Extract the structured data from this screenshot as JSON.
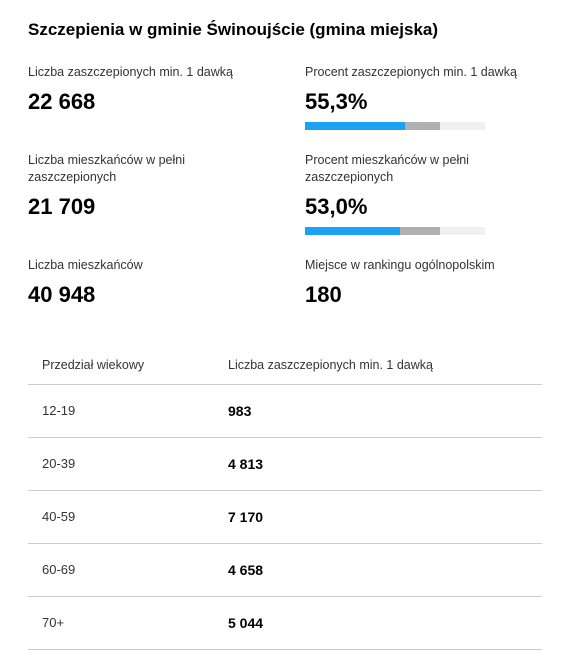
{
  "title": "Szczepienia w gminie Świnoujście (gmina miejska)",
  "stats": {
    "vaccinated_min1": {
      "label": "Liczba zaszczepionych min. 1 dawką",
      "value": "22 668"
    },
    "percent_min1": {
      "label": "Procent zaszczepionych min. 1 dawką",
      "value": "55,3%",
      "percent": 55.3,
      "bar_fill_color": "#1da1f2",
      "bar_track_color": "#b0b0b0"
    },
    "fully_vaccinated": {
      "label": "Liczba mieszkańców w pełni zaszczepionych",
      "value": "21 709"
    },
    "percent_full": {
      "label": "Procent mieszkańców w pełni zaszczepionych",
      "value": "53,0%",
      "percent": 53.0,
      "bar_fill_color": "#1da1f2",
      "bar_track_color": "#b0b0b0"
    },
    "population": {
      "label": "Liczba mieszkańców",
      "value": "40 948"
    },
    "ranking": {
      "label": "Miejsce w rankingu ogólnopolskim",
      "value": "180"
    }
  },
  "table": {
    "header_age": "Przedział wiekowy",
    "header_count": "Liczba zaszczepionych min. 1 dawką",
    "rows": [
      {
        "age": "12-19",
        "count": "983"
      },
      {
        "age": "20-39",
        "count": "4 813"
      },
      {
        "age": "40-59",
        "count": "7 170"
      },
      {
        "age": "60-69",
        "count": "4 658"
      },
      {
        "age": "70+",
        "count": "5 044"
      }
    ]
  },
  "colors": {
    "text": "#000000",
    "muted": "#333333",
    "divider": "#cccccc",
    "background": "#ffffff"
  }
}
